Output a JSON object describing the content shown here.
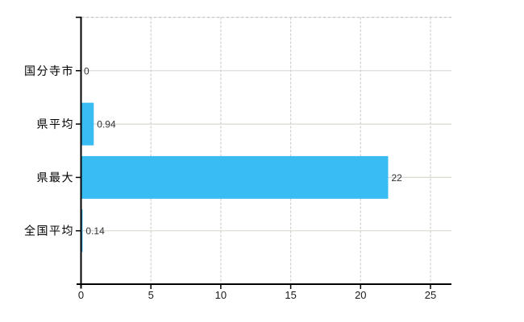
{
  "chart_data": {
    "type": "bar",
    "orientation": "horizontal",
    "title": "",
    "xlabel": "",
    "ylabel": "",
    "categories": [
      "国分寺市",
      "県平均",
      "県最大",
      "全国平均"
    ],
    "values": [
      0,
      0.94,
      22,
      0.14
    ],
    "value_labels": [
      "0",
      "0.94",
      "22",
      "0.14"
    ],
    "x_ticks": [
      0,
      5,
      10,
      15,
      20,
      25
    ],
    "x_tick_labels": [
      "0",
      "5",
      "10",
      "15",
      "20",
      "25"
    ],
    "xlim": [
      0,
      26.5
    ],
    "grid": "on",
    "legend_position": "none",
    "bar_color": "#38bcf1"
  },
  "colors": {
    "background": "#ffffff",
    "bar": "#38bcf1",
    "axis": "#000000",
    "horizontal_grid": "#d6dbd2",
    "vertical_grid": "#d2cfcc",
    "top_border_dashed": "#c9c9c9",
    "value_label_text": "#333333",
    "axis_tick_text": "#1a1a1a",
    "category_text": "#000000"
  }
}
